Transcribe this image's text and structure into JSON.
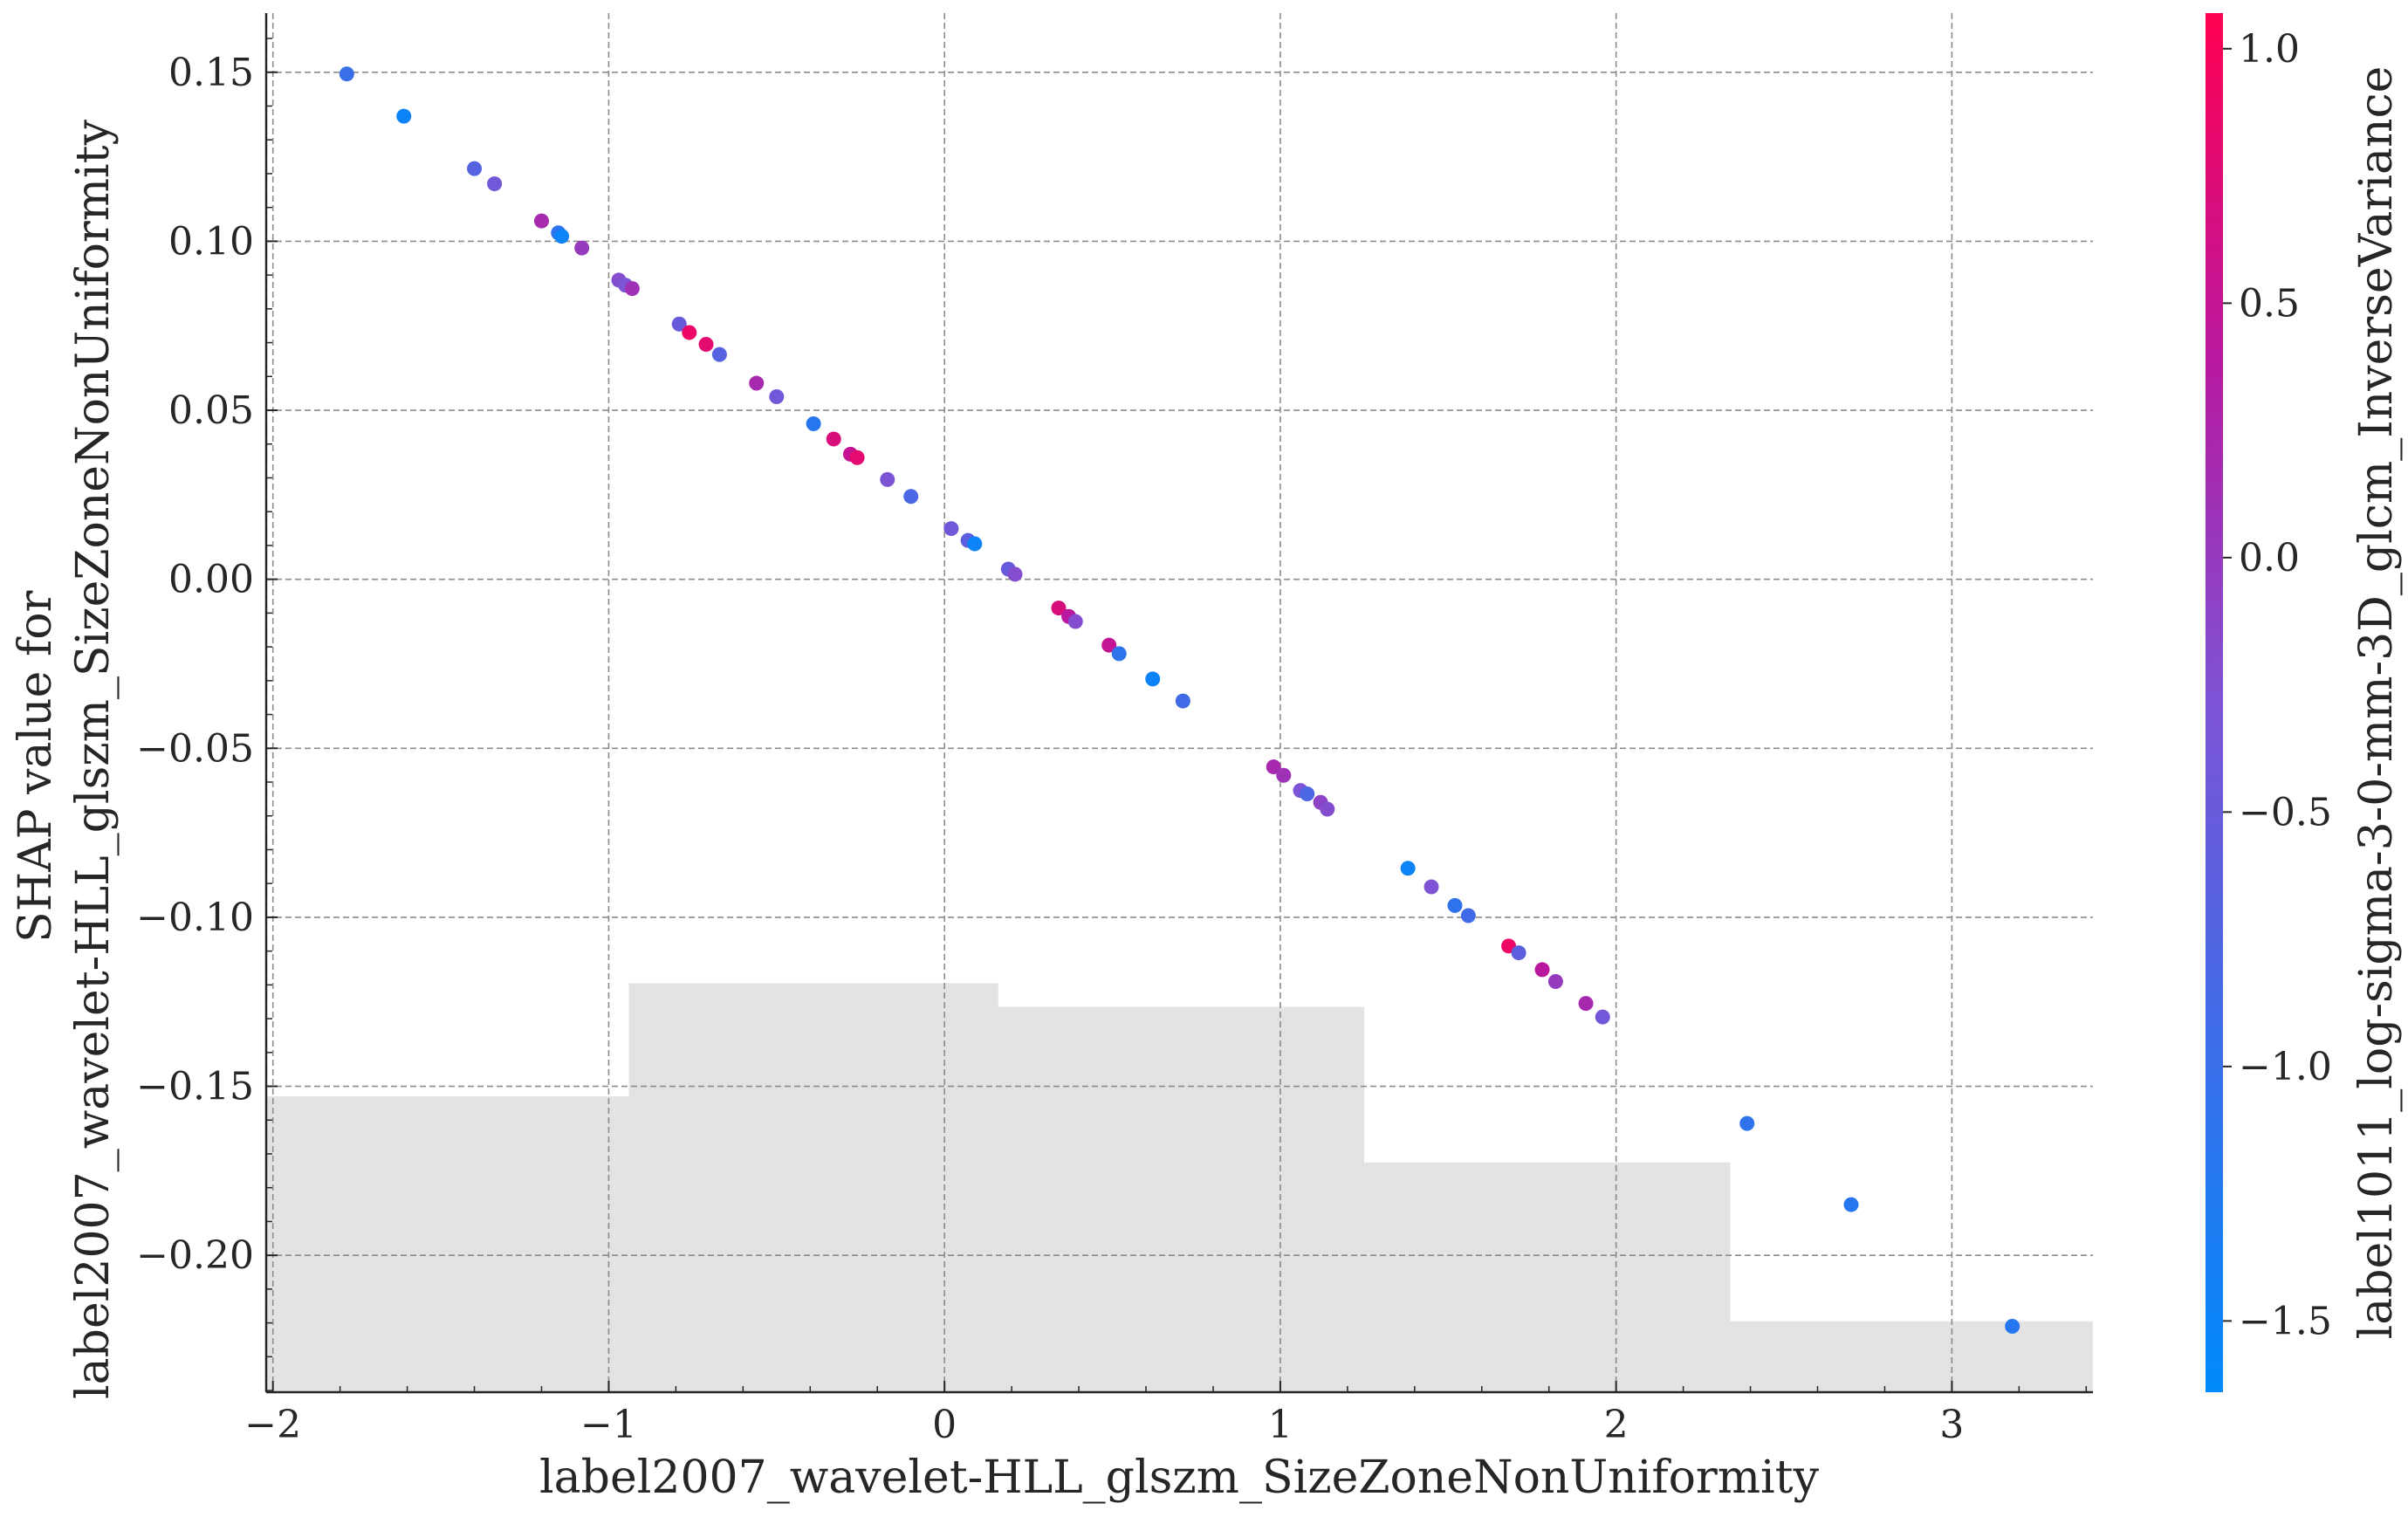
{
  "chart_data": {
    "type": "scatter",
    "xlabel": "label2007_wavelet-HLL_glszm_SizeZoneNonUniformity",
    "ylabel_lines": [
      "SHAP value for",
      "label2007_wavelet-HLL_glszm_SizeZoneNonUniformity"
    ],
    "xlim": [
      -2.02,
      3.42
    ],
    "ylim": [
      -0.2405,
      0.1675
    ],
    "x_ticks": [
      -2,
      -1,
      0,
      1,
      2,
      3
    ],
    "x_tick_labels": [
      "−2",
      "−1",
      "0",
      "1",
      "2",
      "3"
    ],
    "y_ticks": [
      0.15,
      0.1,
      0.05,
      0.0,
      -0.05,
      -0.1,
      -0.15,
      -0.2
    ],
    "y_tick_labels": [
      "0.15",
      "0.10",
      "0.05",
      "0.00",
      "−0.05",
      "−0.10",
      "−0.15",
      "−0.20"
    ],
    "grid": true,
    "colorbar": {
      "label": "label1011_log-sigma-3-0-mm-3D_glcm_InverseVariance",
      "range": [
        -1.64,
        1.07
      ],
      "ticks": [
        1.0,
        0.5,
        0.0,
        -0.5,
        -1.0,
        -1.5
      ],
      "tick_labels": [
        "1.0",
        "0.5",
        "0.0",
        "−0.5",
        "−1.0",
        "−1.5"
      ],
      "colormap": [
        "#008afb",
        "#3b6de8",
        "#7d53d5",
        "#b8189f",
        "#ff0051"
      ]
    },
    "histogram": {
      "edges": [
        -2.02,
        -0.94,
        0.16,
        1.25,
        2.34,
        3.42
      ],
      "tops": [
        -0.153,
        -0.1195,
        -0.1265,
        -0.1725,
        -0.2195
      ]
    },
    "points": [
      {
        "x": -1.78,
        "y": 0.1495,
        "c": -1.0
      },
      {
        "x": -1.61,
        "y": 0.137,
        "c": -1.5
      },
      {
        "x": -1.4,
        "y": 0.1215,
        "c": -0.7
      },
      {
        "x": -1.34,
        "y": 0.117,
        "c": -0.4
      },
      {
        "x": -1.2,
        "y": 0.106,
        "c": 0.2
      },
      {
        "x": -1.15,
        "y": 0.1025,
        "c": -1.1
      },
      {
        "x": -1.14,
        "y": 0.1015,
        "c": -1.5
      },
      {
        "x": -1.08,
        "y": 0.098,
        "c": 0.0
      },
      {
        "x": -0.97,
        "y": 0.0885,
        "c": -0.2
      },
      {
        "x": -0.95,
        "y": 0.087,
        "c": -0.3
      },
      {
        "x": -0.93,
        "y": 0.086,
        "c": 0.1
      },
      {
        "x": -0.79,
        "y": 0.0755,
        "c": -0.5
      },
      {
        "x": -0.76,
        "y": 0.073,
        "c": 0.9
      },
      {
        "x": -0.71,
        "y": 0.0695,
        "c": 0.8
      },
      {
        "x": -0.67,
        "y": 0.0665,
        "c": -0.7
      },
      {
        "x": -0.56,
        "y": 0.058,
        "c": 0.2
      },
      {
        "x": -0.5,
        "y": 0.054,
        "c": -0.4
      },
      {
        "x": -0.39,
        "y": 0.046,
        "c": -1.2
      },
      {
        "x": -0.33,
        "y": 0.0415,
        "c": 0.7
      },
      {
        "x": -0.28,
        "y": 0.037,
        "c": 0.5
      },
      {
        "x": -0.26,
        "y": 0.036,
        "c": 0.8
      },
      {
        "x": -0.17,
        "y": 0.0295,
        "c": -0.3
      },
      {
        "x": -0.1,
        "y": 0.0245,
        "c": -0.8
      },
      {
        "x": 0.02,
        "y": 0.015,
        "c": -0.4
      },
      {
        "x": 0.07,
        "y": 0.0115,
        "c": -0.6
      },
      {
        "x": 0.09,
        "y": 0.0105,
        "c": -1.5
      },
      {
        "x": 0.19,
        "y": 0.003,
        "c": -0.5
      },
      {
        "x": 0.21,
        "y": 0.0015,
        "c": -0.2
      },
      {
        "x": 0.34,
        "y": -0.0085,
        "c": 0.7
      },
      {
        "x": 0.37,
        "y": -0.011,
        "c": 0.4
      },
      {
        "x": 0.39,
        "y": -0.0125,
        "c": -0.2
      },
      {
        "x": 0.49,
        "y": -0.0195,
        "c": 0.5
      },
      {
        "x": 0.52,
        "y": -0.022,
        "c": -1.1
      },
      {
        "x": 0.62,
        "y": -0.0295,
        "c": -1.5
      },
      {
        "x": 0.71,
        "y": -0.036,
        "c": -0.9
      },
      {
        "x": 0.98,
        "y": -0.0555,
        "c": 0.2
      },
      {
        "x": 1.01,
        "y": -0.058,
        "c": 0.1
      },
      {
        "x": 1.06,
        "y": -0.0625,
        "c": -0.3
      },
      {
        "x": 1.08,
        "y": -0.0635,
        "c": -0.8
      },
      {
        "x": 1.12,
        "y": -0.066,
        "c": -0.1
      },
      {
        "x": 1.14,
        "y": -0.068,
        "c": -0.2
      },
      {
        "x": 1.38,
        "y": -0.0855,
        "c": -1.5
      },
      {
        "x": 1.45,
        "y": -0.091,
        "c": -0.3
      },
      {
        "x": 1.52,
        "y": -0.0965,
        "c": -1.1
      },
      {
        "x": 1.56,
        "y": -0.0995,
        "c": -0.9
      },
      {
        "x": 1.68,
        "y": -0.1085,
        "c": 0.9
      },
      {
        "x": 1.71,
        "y": -0.1105,
        "c": -0.6
      },
      {
        "x": 1.78,
        "y": -0.1155,
        "c": 0.4
      },
      {
        "x": 1.82,
        "y": -0.119,
        "c": 0.0
      },
      {
        "x": 1.91,
        "y": -0.1255,
        "c": 0.2
      },
      {
        "x": 1.96,
        "y": -0.1295,
        "c": -0.4
      },
      {
        "x": 2.39,
        "y": -0.161,
        "c": -1.1
      },
      {
        "x": 2.7,
        "y": -0.185,
        "c": -1.2
      },
      {
        "x": 3.18,
        "y": -0.221,
        "c": -1.2
      }
    ]
  }
}
